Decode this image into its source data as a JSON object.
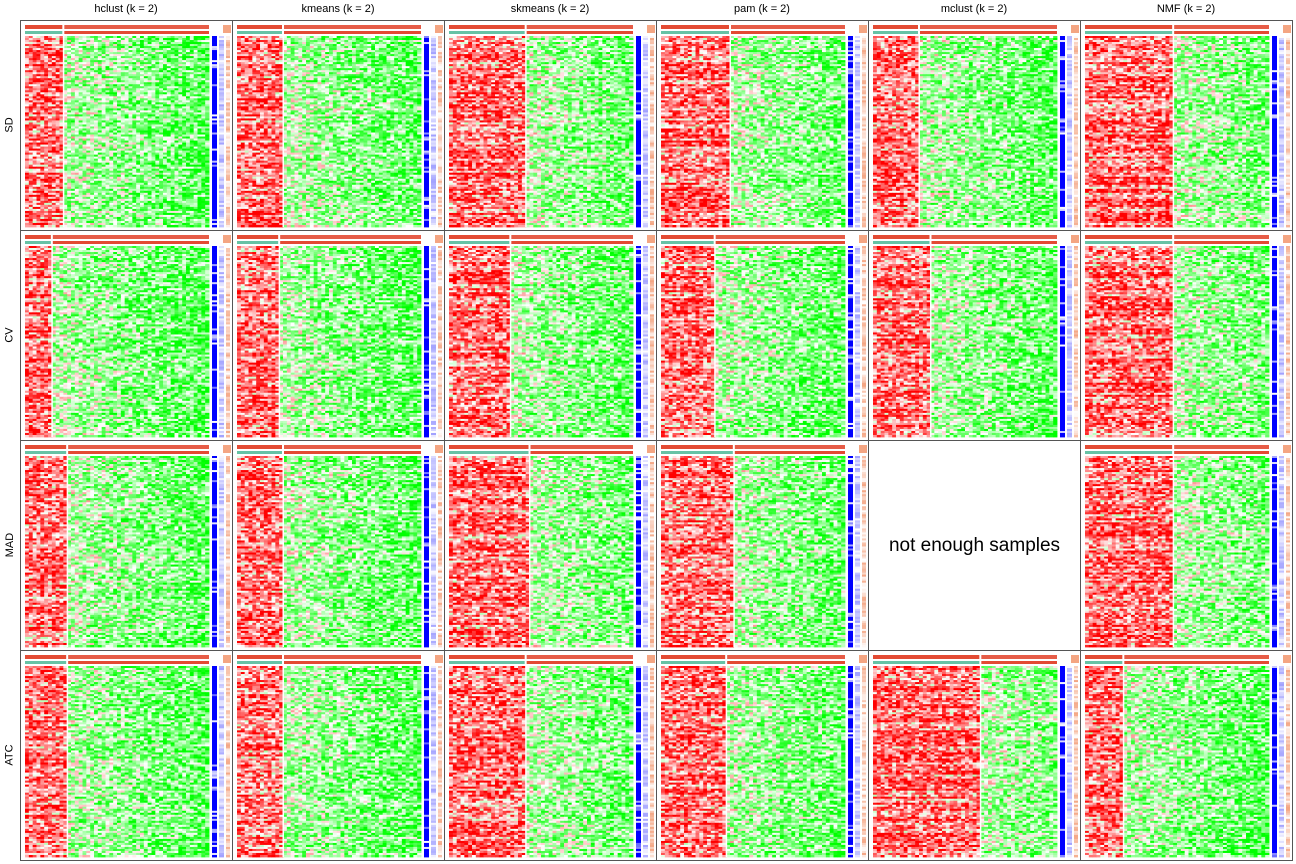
{
  "colors": {
    "high": "#ff0000",
    "mid": "#ffffff",
    "low": "#00ff00",
    "class_1": "#e34a33",
    "class_2": "#66c2a5",
    "silhouette_high": "#0000ff",
    "silhouette_low": "#ffffff",
    "annotation_light": "#f4a582"
  },
  "chart_data": {
    "type": "heatmap",
    "title": "",
    "columns": [
      "hclust (k = 2)",
      "kmeans (k = 2)",
      "skmeans (k = 2)",
      "pam (k = 2)",
      "mclust (k = 2)",
      "NMF (k = 2)"
    ],
    "rows": [
      "SD",
      "CV",
      "MAD",
      "ATC"
    ],
    "empty_panel_text": "not enough samples",
    "panels": [
      {
        "row": "SD",
        "col": "hclust (k = 2)",
        "has_data": true,
        "group1_fraction": 0.2,
        "silhouette_fraction": 0.04
      },
      {
        "row": "SD",
        "col": "kmeans (k = 2)",
        "has_data": true,
        "group1_fraction": 0.25,
        "silhouette_fraction": 0.04
      },
      {
        "row": "SD",
        "col": "skmeans (k = 2)",
        "has_data": true,
        "group1_fraction": 0.42,
        "silhouette_fraction": 0.04
      },
      {
        "row": "SD",
        "col": "pam (k = 2)",
        "has_data": true,
        "group1_fraction": 0.38,
        "silhouette_fraction": 0.04
      },
      {
        "row": "SD",
        "col": "mclust (k = 2)",
        "has_data": true,
        "group1_fraction": 0.24,
        "silhouette_fraction": 0.04
      },
      {
        "row": "SD",
        "col": "NMF (k = 2)",
        "has_data": true,
        "group1_fraction": 0.48,
        "silhouette_fraction": 0.04
      },
      {
        "row": "CV",
        "col": "hclust (k = 2)",
        "has_data": true,
        "group1_fraction": 0.15,
        "silhouette_fraction": 0.04
      },
      {
        "row": "CV",
        "col": "kmeans (k = 2)",
        "has_data": true,
        "group1_fraction": 0.23,
        "silhouette_fraction": 0.04
      },
      {
        "row": "CV",
        "col": "skmeans (k = 2)",
        "has_data": true,
        "group1_fraction": 0.33,
        "silhouette_fraction": 0.04
      },
      {
        "row": "CV",
        "col": "pam (k = 2)",
        "has_data": true,
        "group1_fraction": 0.3,
        "silhouette_fraction": 0.04
      },
      {
        "row": "CV",
        "col": "mclust (k = 2)",
        "has_data": true,
        "group1_fraction": 0.31,
        "silhouette_fraction": 0.04
      },
      {
        "row": "CV",
        "col": "NMF (k = 2)",
        "has_data": true,
        "group1_fraction": 0.48,
        "silhouette_fraction": 0.04
      },
      {
        "row": "MAD",
        "col": "hclust (k = 2)",
        "has_data": true,
        "group1_fraction": 0.22,
        "silhouette_fraction": 0.04
      },
      {
        "row": "MAD",
        "col": "kmeans (k = 2)",
        "has_data": true,
        "group1_fraction": 0.25,
        "silhouette_fraction": 0.04
      },
      {
        "row": "MAD",
        "col": "skmeans (k = 2)",
        "has_data": true,
        "group1_fraction": 0.43,
        "silhouette_fraction": 0.04
      },
      {
        "row": "MAD",
        "col": "pam (k = 2)",
        "has_data": true,
        "group1_fraction": 0.39,
        "silhouette_fraction": 0.04
      },
      {
        "row": "MAD",
        "col": "mclust (k = 2)",
        "has_data": false,
        "group1_fraction": 0,
        "silhouette_fraction": 0
      },
      {
        "row": "MAD",
        "col": "NMF (k = 2)",
        "has_data": true,
        "group1_fraction": 0.48,
        "silhouette_fraction": 0.04
      },
      {
        "row": "ATC",
        "col": "hclust (k = 2)",
        "has_data": true,
        "group1_fraction": 0.23,
        "silhouette_fraction": 0.04
      },
      {
        "row": "ATC",
        "col": "kmeans (k = 2)",
        "has_data": true,
        "group1_fraction": 0.25,
        "silhouette_fraction": 0.04
      },
      {
        "row": "ATC",
        "col": "skmeans (k = 2)",
        "has_data": true,
        "group1_fraction": 0.42,
        "silhouette_fraction": 0.04
      },
      {
        "row": "ATC",
        "col": "pam (k = 2)",
        "has_data": true,
        "group1_fraction": 0.35,
        "silhouette_fraction": 0.04
      },
      {
        "row": "ATC",
        "col": "mclust (k = 2)",
        "has_data": true,
        "group1_fraction": 0.59,
        "silhouette_fraction": 0.04
      },
      {
        "row": "ATC",
        "col": "NMF (k = 2)",
        "has_data": true,
        "group1_fraction": 0.2,
        "silhouette_fraction": 0.04
      }
    ]
  }
}
